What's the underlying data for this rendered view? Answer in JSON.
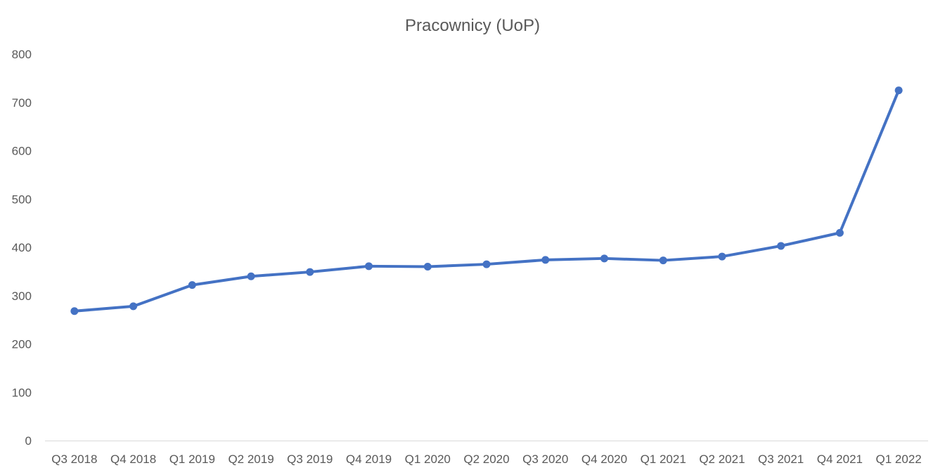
{
  "chart_data": {
    "type": "line",
    "title": "Pracownicy (UoP)",
    "xlabel": "",
    "ylabel": "",
    "categories": [
      "Q3 2018",
      "Q4 2018",
      "Q1 2019",
      "Q2 2019",
      "Q3 2019",
      "Q4 2019",
      "Q1 2020",
      "Q2 2020",
      "Q3 2020",
      "Q4 2020",
      "Q1 2021",
      "Q2 2021",
      "Q3 2021",
      "Q4 2021",
      "Q1 2022"
    ],
    "series": [
      {
        "values": [
          268,
          278,
          322,
          340,
          349,
          361,
          360,
          365,
          374,
          377,
          373,
          381,
          403,
          430,
          725
        ]
      }
    ],
    "ylim": [
      0,
      800
    ],
    "yticks": [
      0,
      100,
      200,
      300,
      400,
      500,
      600,
      700,
      800
    ],
    "grid": false,
    "legend": "none",
    "colors": {
      "line": "#4472C4",
      "axis": "#D9D9D9",
      "text": "#595959"
    }
  }
}
